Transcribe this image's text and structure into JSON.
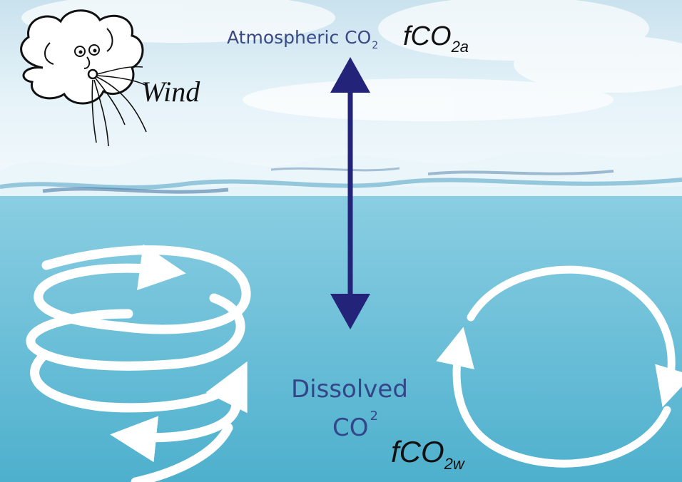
{
  "labels": {
    "atmospheric_text": "Atmospheric CO",
    "atmospheric_sub": "2",
    "fco2a_main": "fCO",
    "fco2a_sub": "2a",
    "wind": "Wind",
    "dissolved_line1": "Dissolved",
    "dissolved_line2": "CO",
    "dissolved_sub": "2",
    "fco2w_main": "fCO",
    "fco2w_sub": "2w"
  },
  "colors": {
    "arrow": "#23237a",
    "label_blue": "#34468a",
    "water_top": "#7fc6dc",
    "water_bottom": "#4fb2cf",
    "sky": "#dff0f7"
  }
}
